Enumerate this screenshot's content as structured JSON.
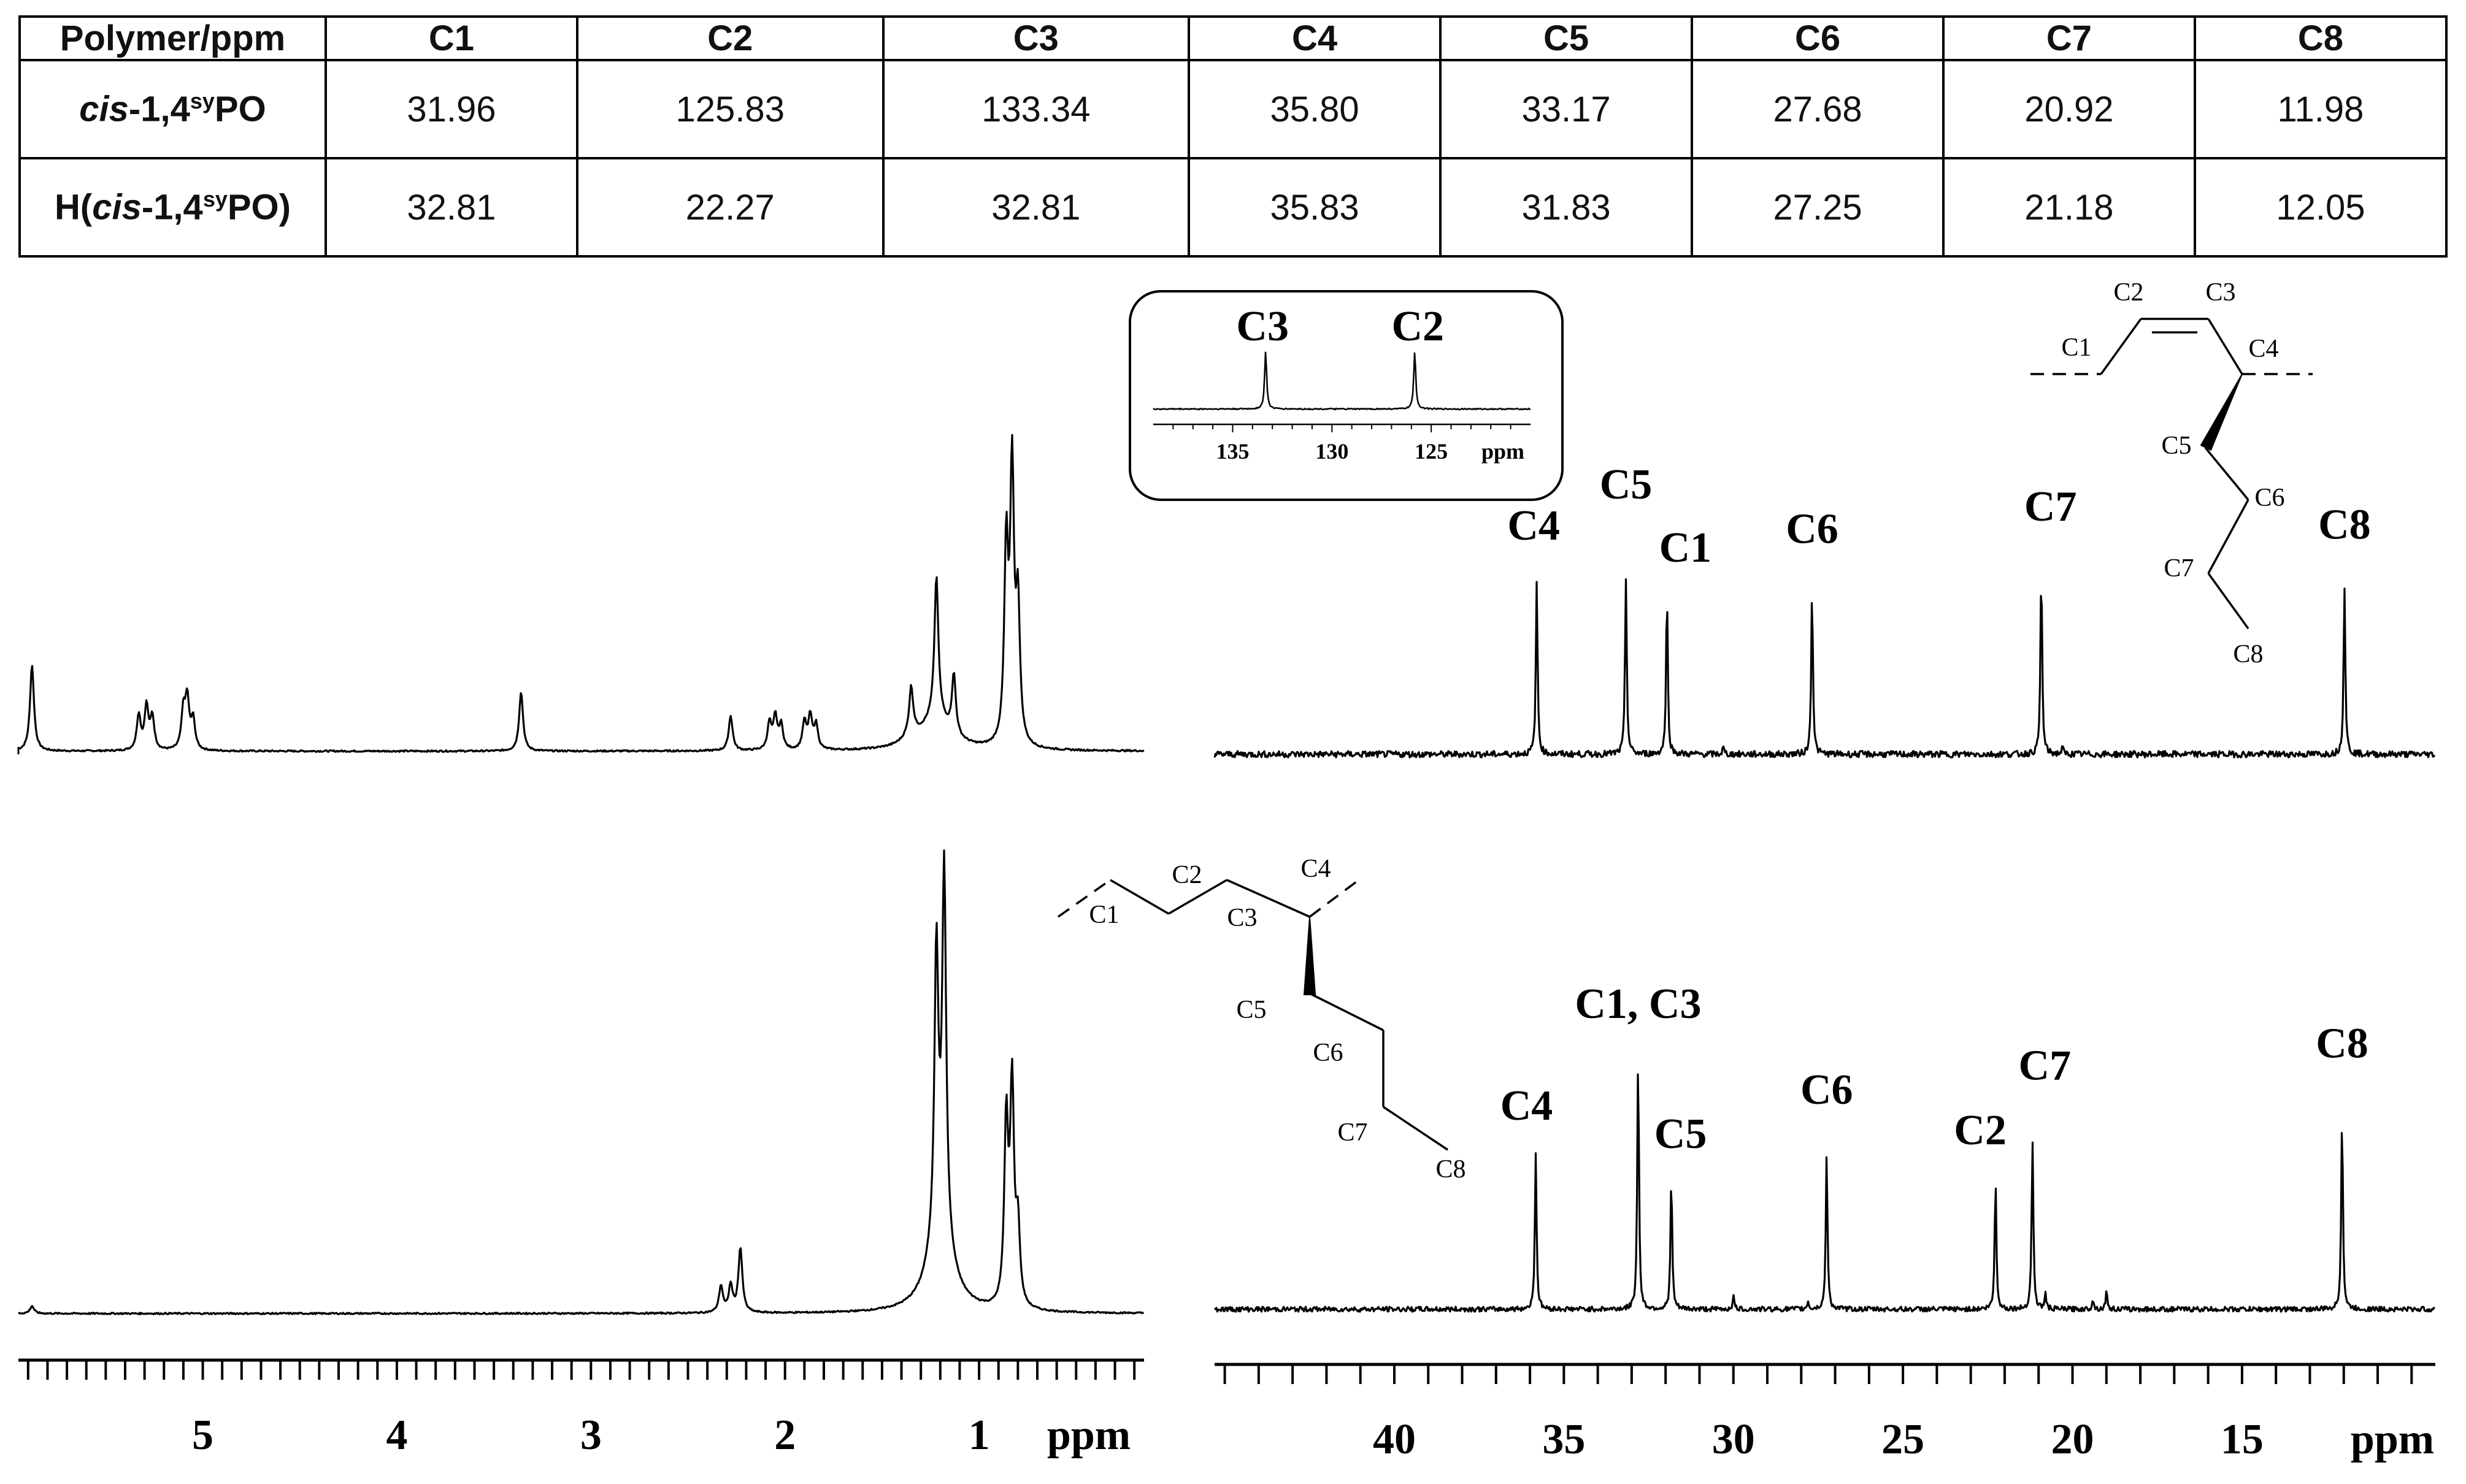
{
  "table": {
    "header": [
      "Polymer/ppm",
      "C1",
      "C2",
      "C3",
      "C4",
      "C5",
      "C6",
      "C7",
      "C8"
    ],
    "rows": [
      {
        "pre": "",
        "italic": "cis",
        "mid": "-1,4",
        "sup": "sy",
        "post": "PO",
        "values": [
          "31.96",
          "125.83",
          "133.34",
          "35.80",
          "33.17",
          "27.68",
          "20.92",
          "11.98"
        ]
      },
      {
        "pre": "H(",
        "italic": "cis",
        "mid": "-1,4",
        "sup": "sy",
        "post": "PO)",
        "values": [
          "32.81",
          "22.27",
          "32.81",
          "35.83",
          "31.83",
          "27.25",
          "21.18",
          "12.05"
        ]
      }
    ]
  },
  "chart_data": [
    {
      "type": "line",
      "panel": "1H NMR, cis-1,4syPO",
      "xlim": [
        5.95,
        0.15
      ],
      "peaks": [
        {
          "x": 5.88,
          "h": 0.32
        },
        {
          "x": 5.33,
          "h": 0.13
        },
        {
          "x": 5.29,
          "h": 0.16
        },
        {
          "x": 5.26,
          "h": 0.12
        },
        {
          "x": 5.1,
          "h": 0.14
        },
        {
          "x": 5.08,
          "h": 0.18
        },
        {
          "x": 5.05,
          "h": 0.11
        },
        {
          "x": 3.36,
          "h": 0.22
        },
        {
          "x": 2.28,
          "h": 0.13
        },
        {
          "x": 2.08,
          "h": 0.1
        },
        {
          "x": 2.05,
          "h": 0.12
        },
        {
          "x": 2.02,
          "h": 0.09
        },
        {
          "x": 1.9,
          "h": 0.1
        },
        {
          "x": 1.87,
          "h": 0.12
        },
        {
          "x": 1.84,
          "h": 0.09
        },
        {
          "x": 1.35,
          "h": 0.17
        },
        {
          "x": 1.22,
          "h": 0.52
        },
        {
          "x": 1.13,
          "h": 0.22
        },
        {
          "x": 0.86,
          "h": 0.72
        },
        {
          "x": 0.83,
          "h": 1.0
        },
        {
          "x": 0.8,
          "h": 0.5
        }
      ]
    },
    {
      "type": "line",
      "panel": "13C NMR, cis-1,4syPO",
      "xlim": [
        45.3,
        9.3
      ],
      "inset": {
        "labels": [
          "C3",
          "C2"
        ],
        "ticks": [
          "135",
          "130",
          "125"
        ],
        "unit": "ppm",
        "xlim": [
          139,
          120
        ],
        "peaks": [
          133.34,
          125.83
        ]
      },
      "peaks": [
        {
          "x": 35.8,
          "h": 0.8,
          "label": "C4"
        },
        {
          "x": 33.17,
          "h": 0.82,
          "label": "C5"
        },
        {
          "x": 31.96,
          "h": 0.74,
          "label": "C1"
        },
        {
          "x": 27.68,
          "h": 0.77,
          "label": "C6"
        },
        {
          "x": 20.92,
          "h": 0.86,
          "label": "C7"
        },
        {
          "x": 11.98,
          "h": 0.79,
          "label": "C8"
        },
        {
          "x": 30.3,
          "h": 0.03
        },
        {
          "x": 20.3,
          "h": 0.03
        }
      ],
      "structure": [
        "C1",
        "C2",
        "C3",
        "C4",
        "C5",
        "C6",
        "C7",
        "C8"
      ]
    },
    {
      "type": "line",
      "panel": "1H NMR, H(cis-1,4syPO)",
      "xlim": [
        5.95,
        0.15
      ],
      "peaks": [
        {
          "x": 5.88,
          "h": 0.02
        },
        {
          "x": 2.33,
          "h": 0.07
        },
        {
          "x": 2.28,
          "h": 0.07
        },
        {
          "x": 2.23,
          "h": 0.17
        },
        {
          "x": 1.22,
          "h": 0.75
        },
        {
          "x": 1.18,
          "h": 0.95
        },
        {
          "x": 0.86,
          "h": 0.48
        },
        {
          "x": 0.83,
          "h": 0.57
        },
        {
          "x": 0.8,
          "h": 0.2
        }
      ],
      "ticks": [
        5,
        4,
        3,
        2,
        1
      ],
      "unit": "ppm"
    },
    {
      "type": "line",
      "panel": "13C NMR, H(cis-1,4syPO)",
      "xlim": [
        45.3,
        9.3
      ],
      "peaks": [
        {
          "x": 35.83,
          "h": 0.62,
          "label": "C4"
        },
        {
          "x": 32.81,
          "h": 1.0,
          "label": "C1, C3"
        },
        {
          "x": 31.83,
          "h": 0.52,
          "label": "C5"
        },
        {
          "x": 27.25,
          "h": 0.61,
          "label": "C6"
        },
        {
          "x": 22.27,
          "h": 0.51,
          "label": "C2"
        },
        {
          "x": 21.18,
          "h": 0.67,
          "label": "C7"
        },
        {
          "x": 12.05,
          "h": 0.77,
          "label": "C8"
        },
        {
          "x": 30.0,
          "h": 0.05
        },
        {
          "x": 27.8,
          "h": 0.03
        },
        {
          "x": 20.8,
          "h": 0.06
        },
        {
          "x": 19.4,
          "h": 0.04
        },
        {
          "x": 19.0,
          "h": 0.07
        }
      ],
      "ticks": [
        40,
        35,
        30,
        25,
        20,
        15
      ],
      "unit": "ppm",
      "structure": [
        "C1",
        "C2",
        "C3",
        "C4",
        "C5",
        "C6",
        "C7",
        "C8"
      ]
    }
  ]
}
